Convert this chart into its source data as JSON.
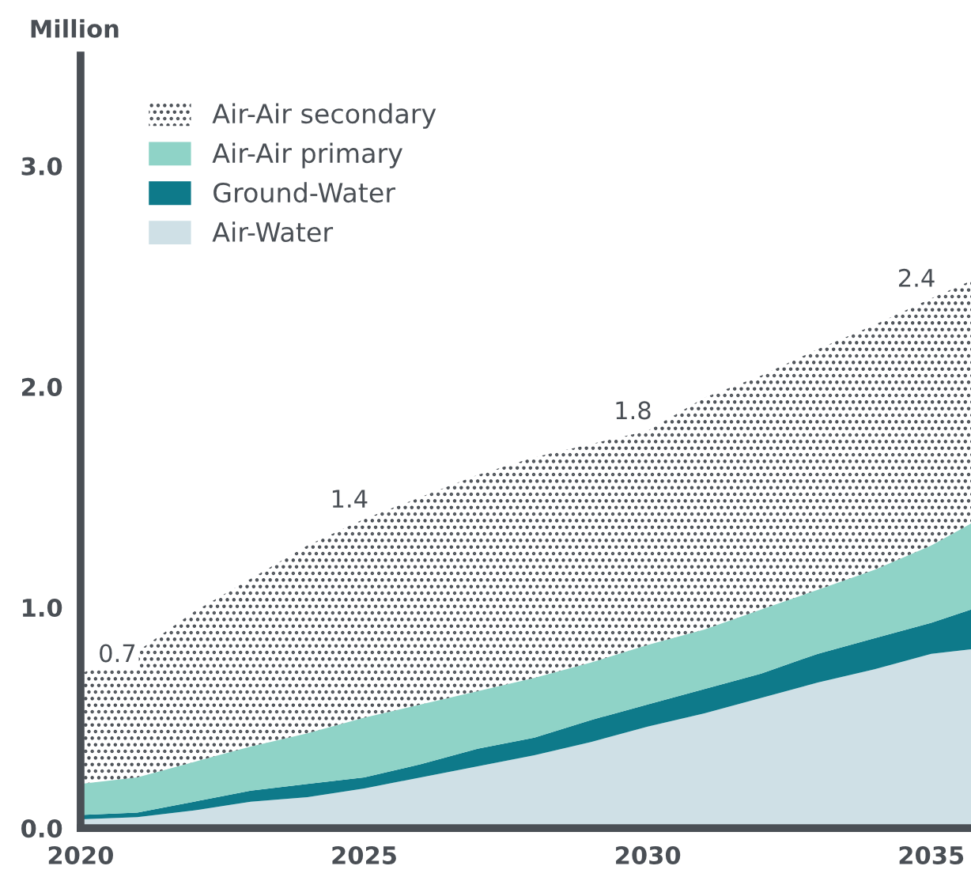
{
  "chart_data": {
    "type": "area",
    "stacked": true,
    "ylabel": "Million",
    "x": [
      2020,
      2021,
      2022,
      2023,
      2024,
      2025,
      2026,
      2027,
      2028,
      2029,
      2030,
      2031,
      2032,
      2033,
      2034,
      2035,
      2035.7
    ],
    "series": [
      {
        "name": "Air-Water",
        "color": "#cfe0e6",
        "values": [
          0.04,
          0.05,
          0.08,
          0.12,
          0.14,
          0.18,
          0.23,
          0.28,
          0.33,
          0.39,
          0.46,
          0.52,
          0.59,
          0.66,
          0.72,
          0.79,
          0.81
        ]
      },
      {
        "name": "Ground-Water",
        "color": "#0e7a8a",
        "values": [
          0.02,
          0.02,
          0.04,
          0.05,
          0.06,
          0.05,
          0.06,
          0.08,
          0.08,
          0.1,
          0.1,
          0.11,
          0.11,
          0.13,
          0.14,
          0.14,
          0.18
        ]
      },
      {
        "name": "Air-Air primary",
        "color": "#8fd3c7",
        "values": [
          0.14,
          0.16,
          0.18,
          0.2,
          0.23,
          0.27,
          0.27,
          0.26,
          0.27,
          0.26,
          0.27,
          0.27,
          0.29,
          0.29,
          0.31,
          0.35,
          0.39
        ]
      },
      {
        "name": "Air-Air secondary",
        "color": "#4a4f55",
        "line_style": "dotted",
        "values": [
          0.5,
          0.57,
          0.68,
          0.76,
          0.85,
          0.9,
          0.94,
          0.98,
          1.0,
          0.99,
          0.97,
          1.05,
          1.06,
          1.09,
          1.11,
          1.12,
          1.1
        ]
      }
    ],
    "annotations": [
      {
        "text": "0.7",
        "x": 2020,
        "y": 0.7
      },
      {
        "text": "1.4",
        "x": 2025,
        "y": 1.4
      },
      {
        "text": "1.8",
        "x": 2030,
        "y": 1.8
      },
      {
        "text": "2.4",
        "x": 2035,
        "y": 2.4
      }
    ],
    "xlim": [
      2020,
      2035.7
    ],
    "xticks": [
      2020,
      2025,
      2030,
      2035
    ],
    "ylim": [
      0,
      3.5
    ],
    "yticks": [
      {
        "value": 0,
        "label": "0.0"
      },
      {
        "value": 1,
        "label": "1.0"
      },
      {
        "value": 2,
        "label": "2.0"
      },
      {
        "value": 3,
        "label": "3.0"
      }
    ],
    "grid": false,
    "legend": "top left"
  }
}
